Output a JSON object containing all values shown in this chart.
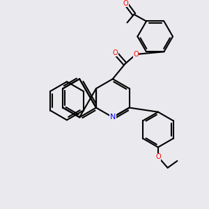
{
  "background_color": "#eaeaee",
  "bond_color": "#000000",
  "bond_width": 1.5,
  "atom_colors": {
    "O": "#ff0000",
    "N": "#0000ff",
    "C": "#000000"
  },
  "font_size": 7
}
